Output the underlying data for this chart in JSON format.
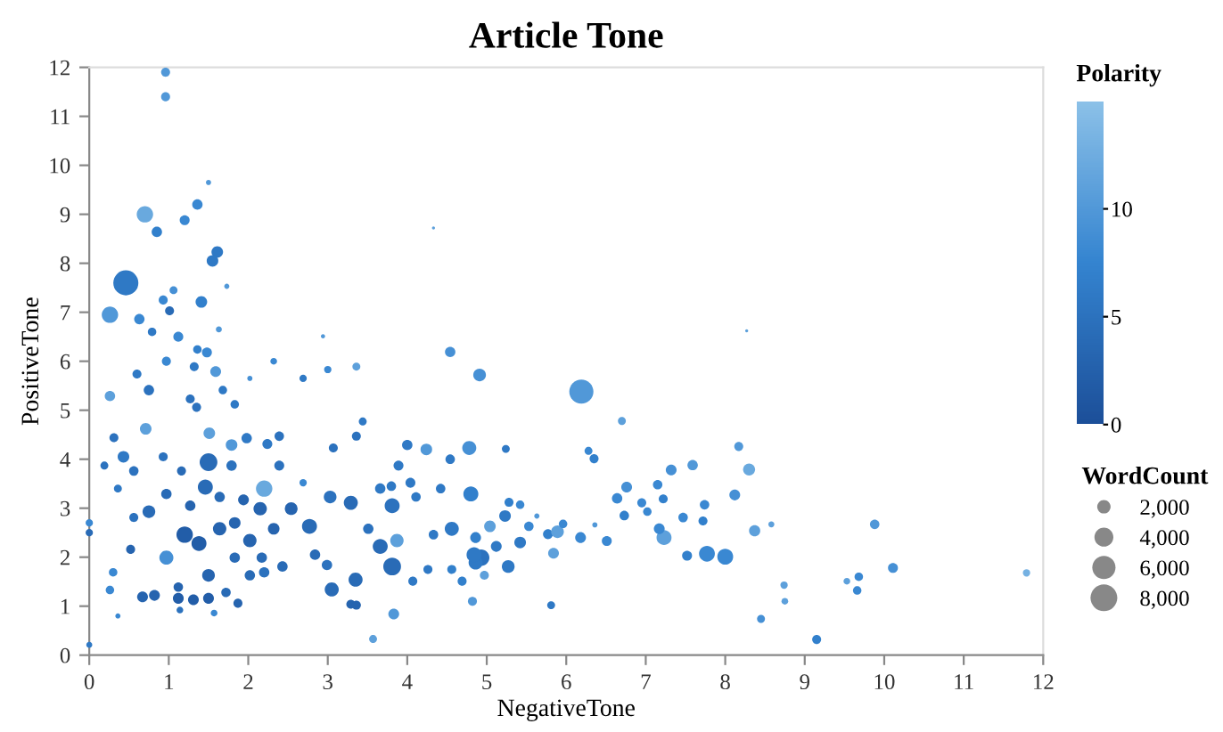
{
  "chart_data": {
    "type": "bubble",
    "title": "Article Tone",
    "xlabel": "NegativeTone",
    "ylabel": "PositiveTone",
    "clabel": "Polarity",
    "legend_title": "WordCount",
    "xlim": [
      0,
      12
    ],
    "xticks": [
      0,
      1,
      2,
      3,
      4,
      5,
      6,
      7,
      8,
      9,
      10,
      11,
      12
    ],
    "ylim": [
      0,
      12
    ],
    "yticks": [
      0,
      1,
      2,
      3,
      4,
      5,
      6,
      7,
      8,
      9,
      10,
      11,
      12
    ],
    "clim": [
      0,
      15
    ],
    "cticks": [
      0,
      5,
      10
    ],
    "size_legend": [
      {
        "value": 2000,
        "label": "2,000"
      },
      {
        "value": 4000,
        "label": "4,000"
      },
      {
        "value": 6000,
        "label": "6,000"
      },
      {
        "value": 8000,
        "label": "8,000"
      }
    ],
    "grid": false,
    "x": [
      0.96,
      0.96,
      1.5,
      0.7,
      1.36,
      0.85,
      1.2,
      1.61,
      1.55,
      0.46,
      0.26,
      1.41,
      1.06,
      0.93,
      1.01,
      0.63,
      0.79,
      1.12,
      1.73,
      1.63,
      1.48,
      2.94,
      4.33,
      4.54,
      0.97,
      6.19,
      4.91,
      4.78,
      4.8,
      5.24,
      6.7,
      6.28,
      6.35,
      8.17,
      7.32,
      7.59,
      8.3,
      6.76,
      7.15,
      6.64,
      6.95,
      7.22,
      6.73,
      7.02,
      7.47,
      7.74,
      7.72,
      8.12,
      7.23,
      7.17,
      7.77,
      8.0,
      7.52,
      8.37,
      8.58,
      8.74,
      8.75,
      8.45,
      9.15,
      9.53,
      9.68,
      9.66,
      8.27,
      5.81,
      6.18,
      6.51,
      5.77,
      5.89,
      5.84,
      5.96,
      6.36,
      4.93,
      4.86,
      5.27,
      5.42,
      5.53,
      5.23,
      5.28,
      5.42,
      5.04,
      4.86,
      5.12,
      4.82,
      4.97,
      5.63,
      9.88,
      10.11,
      11.79,
      0,
      0,
      0,
      0.26,
      0.43,
      0.31,
      0.19,
      0.36,
      0.6,
      0.75,
      0.71,
      0.56,
      0.75,
      0.56,
      0.52,
      0.97,
      0.67,
      0.82,
      0.3,
      0.26,
      0.36,
      1.32,
      1.59,
      1.27,
      1.35,
      1.51,
      1.79,
      1.98,
      1.5,
      1.16,
      1.46,
      1.27,
      1.2,
      1.38,
      1.64,
      1.5,
      1.12,
      1.12,
      1.31,
      1.5,
      1.72,
      1.83,
      1.94,
      2.02,
      2.2,
      2.15,
      2.32,
      2.39,
      2.24,
      2.39,
      2.54,
      2.77,
      2.43,
      2.2,
      2.02,
      2.69,
      2.69,
      3.0,
      3.36,
      3.44,
      3.36,
      3.07,
      3.03,
      3.29,
      2.84,
      2.99,
      3.05,
      3.35,
      3.29,
      3.36,
      3.57,
      3.83,
      3.81,
      3.66,
      3.87,
      3.51,
      3.81,
      3.66,
      3.8,
      3.89,
      4.0,
      4.24,
      4.04,
      4.11,
      4.42,
      4.54,
      4.56,
      4.84,
      4.33,
      4.26,
      4.56,
      4.69,
      4.07,
      2.32,
      2.02,
      1.68,
      1.83,
      1.36,
      0.97,
      0.93,
      1.79,
      1.64,
      1.83,
      2.17,
      1.87,
      1.57,
      1.14
    ],
    "values": [
      11.9,
      11.4,
      9.65,
      9.0,
      9.2,
      8.64,
      8.88,
      8.23,
      8.05,
      7.6,
      6.95,
      7.21,
      7.45,
      7.25,
      7.03,
      6.86,
      6.6,
      6.5,
      7.53,
      6.65,
      6.18,
      6.51,
      8.72,
      6.19,
      6.0,
      5.38,
      5.72,
      4.23,
      3.29,
      4.21,
      4.78,
      4.17,
      4.01,
      4.26,
      3.78,
      3.88,
      3.79,
      3.43,
      3.48,
      3.2,
      3.11,
      3.19,
      2.85,
      2.93,
      2.81,
      3.07,
      2.74,
      3.27,
      2.4,
      2.58,
      2.07,
      2.01,
      2.03,
      2.54,
      2.67,
      1.43,
      1.1,
      0.74,
      0.32,
      1.51,
      1.6,
      1.32,
      6.62,
      1.02,
      2.4,
      2.33,
      2.47,
      2.52,
      2.08,
      2.68,
      2.66,
      1.99,
      1.89,
      1.81,
      2.3,
      2.63,
      2.84,
      3.12,
      3.07,
      2.63,
      2.4,
      2.22,
      1.1,
      1.63,
      2.84,
      2.67,
      1.78,
      1.68,
      2.7,
      2.5,
      0.21,
      5.29,
      4.05,
      4.44,
      3.87,
      3.4,
      5.74,
      5.41,
      4.62,
      3.76,
      2.93,
      2.81,
      2.16,
      1.99,
      1.19,
      1.22,
      1.69,
      1.33,
      0.8,
      5.89,
      5.79,
      5.23,
      5.06,
      4.53,
      4.29,
      4.43,
      3.94,
      3.76,
      3.43,
      3.05,
      2.46,
      2.28,
      2.58,
      1.63,
      1.39,
      1.16,
      1.13,
      1.16,
      1.28,
      2.7,
      3.17,
      2.34,
      3.4,
      2.99,
      2.58,
      4.47,
      4.31,
      3.87,
      2.99,
      2.63,
      1.81,
      1.69,
      1.63,
      3.52,
      5.65,
      5.83,
      5.89,
      4.77,
      4.47,
      4.23,
      3.23,
      3.11,
      2.05,
      1.84,
      1.34,
      1.54,
      1.04,
      1.02,
      0.33,
      0.84,
      1.81,
      2.22,
      2.34,
      2.58,
      3.05,
      3.4,
      3.45,
      3.87,
      4.29,
      4.2,
      3.52,
      3.23,
      3.4,
      4.0,
      2.58,
      2.05,
      2.46,
      1.75,
      1.75,
      1.51,
      1.51,
      6.0,
      5.65,
      5.41,
      5.12,
      6.24,
      3.29,
      4.05,
      3.87,
      3.23,
      1.99,
      1.99,
      1.06,
      0.86,
      0.92
    ],
    "sizes": [
      900,
      900,
      300,
      3000,
      1200,
      1200,
      1100,
      1500,
      1500,
      7000,
      3000,
      1500,
      700,
      900,
      900,
      1200,
      800,
      1100,
      300,
      400,
      1100,
      200,
      100,
      1200,
      900,
      6500,
      1800,
      2200,
      2500,
      700,
      700,
      700,
      900,
      900,
      1300,
      1200,
      1600,
      1300,
      1000,
      1200,
      900,
      900,
      1000,
      800,
      1000,
      1000,
      900,
      1300,
      2500,
      1300,
      2800,
      2800,
      1100,
      1400,
      400,
      600,
      500,
      700,
      900,
      500,
      800,
      800,
      100,
      700,
      1300,
      1100,
      1100,
      1800,
      1300,
      800,
      300,
      3000,
      2200,
      1800,
      1500,
      1000,
      1500,
      900,
      800,
      1500,
      1300,
      1300,
      900,
      900,
      300,
      1000,
      1100,
      600,
      600,
      600,
      400,
      1200,
      1500,
      900,
      700,
      700,
      900,
      1200,
      1500,
      1000,
      1800,
      900,
      900,
      2200,
      1300,
      1300,
      800,
      800,
      300,
      900,
      1300,
      900,
      900,
      1500,
      1500,
      1200,
      3500,
      900,
      2500,
      1200,
      3000,
      2500,
      2000,
      1800,
      1000,
      1300,
      1300,
      1300,
      1000,
      1500,
      1300,
      2000,
      3000,
      2000,
      1500,
      1000,
      1100,
      1100,
      1800,
      2500,
      1200,
      1200,
      1200,
      600,
      600,
      600,
      700,
      700,
      900,
      900,
      1800,
      2200,
      1200,
      1200,
      2200,
      2200,
      900,
      900,
      700,
      1300,
      3500,
      2500,
      2000,
      1200,
      2500,
      1200,
      1000,
      1100,
      1200,
      1500,
      1100,
      1000,
      1000,
      1000,
      2200,
      2500,
      1000,
      900,
      900,
      900,
      900,
      500,
      300,
      800,
      800,
      800,
      1200,
      900,
      1200,
      1200,
      1200,
      1200,
      900,
      500,
      500
    ],
    "cvalues": [
      10,
      10,
      10,
      12,
      8,
      7,
      8,
      6,
      6,
      6,
      10,
      7,
      9,
      8,
      4,
      8,
      6,
      8,
      10,
      10,
      8,
      10,
      11,
      9,
      8,
      10,
      9,
      9,
      7,
      6,
      11,
      8,
      7,
      10,
      9,
      10,
      12,
      9,
      8,
      8,
      8,
      7,
      7,
      8,
      8,
      8,
      7,
      9,
      11,
      8,
      8,
      8,
      7,
      11,
      11,
      11,
      11,
      9,
      7,
      11,
      8,
      8,
      11,
      6,
      8,
      8,
      7,
      11,
      11,
      8,
      10,
      5,
      6,
      6,
      6,
      8,
      6,
      7,
      8,
      11,
      7,
      6,
      10,
      11,
      10,
      10,
      9,
      13,
      8,
      4,
      6,
      11,
      6,
      5,
      5,
      6,
      6,
      5,
      11,
      5,
      4,
      5,
      3,
      9,
      3,
      3,
      8,
      8,
      8,
      6,
      10,
      5,
      5,
      11,
      10,
      6,
      4,
      4,
      4,
      3,
      2,
      2,
      3,
      3,
      3,
      2,
      2,
      2,
      4,
      3,
      3,
      3,
      12,
      3,
      3,
      5,
      6,
      5,
      3,
      4,
      4,
      5,
      4,
      8,
      6,
      8,
      11,
      6,
      5,
      5,
      5,
      4,
      4,
      5,
      4,
      4,
      3,
      3,
      11,
      10,
      4,
      4,
      11,
      5,
      5,
      6,
      6,
      6,
      6,
      10,
      6,
      6,
      6,
      6,
      6,
      6,
      6,
      6,
      7,
      7,
      6,
      8,
      9,
      6,
      6,
      7,
      4,
      5,
      5,
      4,
      4,
      4,
      3,
      8,
      5
    ]
  }
}
